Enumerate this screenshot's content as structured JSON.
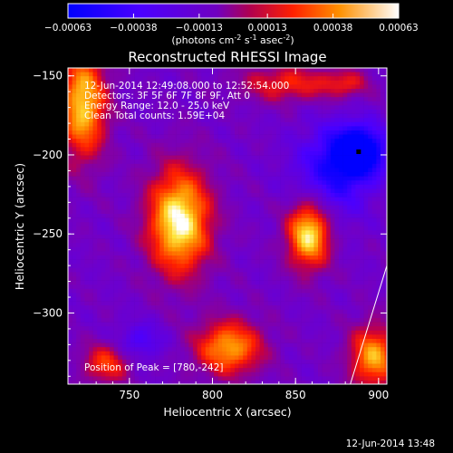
{
  "chart_data": {
    "type": "heatmap",
    "title": "Reconstructed RHESSI Image",
    "xlabel": "Heliocentric X (arcsec)",
    "ylabel": "Heliocentric Y (arcsec)",
    "xlim": [
      713,
      905
    ],
    "ylim": [
      -345,
      -145
    ],
    "x_ticks": [
      750,
      800,
      850,
      900
    ],
    "y_ticks": [
      -150,
      -200,
      -250,
      -300
    ],
    "colorbar": {
      "range": [
        -0.00063,
        0.00063
      ],
      "ticks": [
        "-0.00063",
        "-0.00038",
        "-0.00013",
        "0.00013",
        "0.00038",
        "0.00063"
      ],
      "label": "(photons cm",
      "label_exp1": "-2",
      "label_mid": " s",
      "label_exp2": "-1",
      "label_mid2": " asec",
      "label_exp3": "-2",
      "label_end": ")"
    },
    "annotations": {
      "time": "12-Jun-2014 12:49:08.000 to 12:52:54.000",
      "detectors": "Detectors: 3F 5F 6F 7F 8F 9F, Att 0",
      "energy": "Energy Range: 12.0 - 25.0 keV",
      "clean": "Clean     Total counts: 1.59E+04",
      "peak": "Position of Peak = [780,-242]"
    },
    "peak": [
      780,
      -242
    ],
    "limb_line": [
      [
        883,
        -345
      ],
      [
        905,
        -270
      ]
    ],
    "sources": [
      {
        "x": 780,
        "y": -242,
        "sx": 13,
        "sy": 23,
        "amp": 1.0
      },
      {
        "x": 858,
        "y": -250,
        "sx": 9,
        "sy": 15,
        "amp": 0.95
      },
      {
        "x": 722,
        "y": -168,
        "sx": 10,
        "sy": 24,
        "amp": 0.85
      },
      {
        "x": 810,
        "y": -322,
        "sx": 14,
        "sy": 12,
        "amp": 0.75
      },
      {
        "x": 897,
        "y": -328,
        "sx": 10,
        "sy": 14,
        "amp": 0.75
      },
      {
        "x": 845,
        "y": -155,
        "sx": 20,
        "sy": 8,
        "amp": 0.45
      },
      {
        "x": 736,
        "y": -332,
        "sx": 10,
        "sy": 9,
        "amp": 0.5
      },
      {
        "x": 880,
        "y": -155,
        "sx": 10,
        "sy": 6,
        "amp": 0.35
      },
      {
        "x": 888,
        "y": -198,
        "sx": 11,
        "sy": 11,
        "amp": -0.9
      },
      {
        "x": 872,
        "y": -212,
        "sx": 16,
        "sy": 20,
        "amp": -0.45
      },
      {
        "x": 756,
        "y": -318,
        "sx": 10,
        "sy": 8,
        "amp": -0.3
      }
    ],
    "footer_date": "12-Jun-2014 13:48"
  }
}
